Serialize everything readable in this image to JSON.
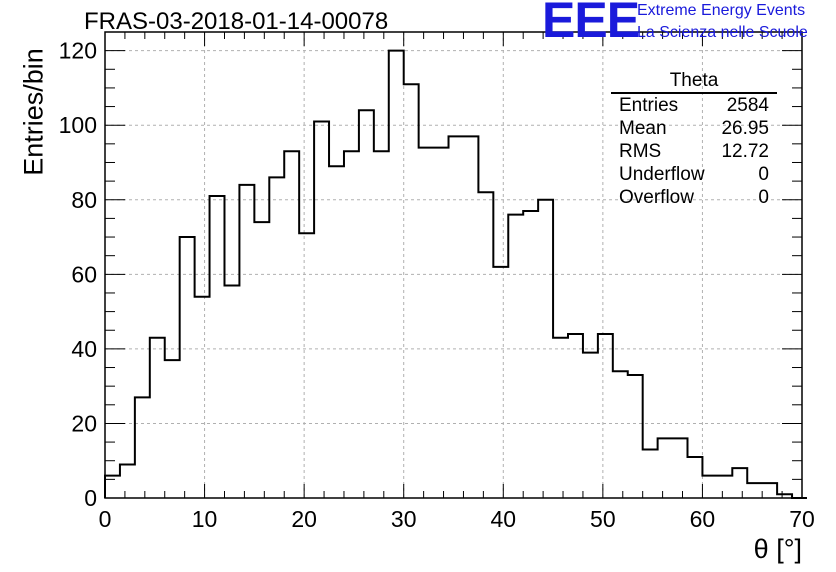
{
  "title": "FRAS-03-2018-01-14-00078",
  "logo": {
    "mark": "EEE",
    "line1": "Extreme Energy Events",
    "line2": "La Scienza nelle Scuole"
  },
  "colors": {
    "logo": "#1a1adb",
    "line": "#000000",
    "grid": "#b0b0b0"
  },
  "stats_box": {
    "title": "Theta",
    "rows": [
      {
        "label": "Entries",
        "value": "2584"
      },
      {
        "label": "Mean",
        "value": "26.95"
      },
      {
        "label": "RMS",
        "value": "12.72"
      },
      {
        "label": "Underflow",
        "value": "0"
      },
      {
        "label": "Overflow",
        "value": "0"
      }
    ]
  },
  "chart_data": {
    "type": "histogram",
    "title": "FRAS-03-2018-01-14-00078",
    "xlabel": "θ [°]",
    "ylabel": "Entries/bin",
    "xlim": [
      0,
      70
    ],
    "ylim": [
      0,
      125
    ],
    "xticks": [
      0,
      10,
      20,
      30,
      40,
      50,
      60,
      70
    ],
    "yticks": [
      0,
      20,
      40,
      60,
      80,
      100,
      120
    ],
    "grid": true,
    "bin_width": 1.5,
    "bin_edges_start": 0,
    "values": [
      6,
      9,
      27,
      43,
      37,
      70,
      54,
      81,
      57,
      84,
      74,
      86,
      93,
      71,
      101,
      89,
      93,
      104,
      93,
      120,
      111,
      94,
      94,
      97,
      97,
      82,
      62,
      76,
      77,
      80,
      43,
      44,
      39,
      44,
      34,
      33,
      13,
      16,
      16,
      11,
      6,
      6,
      8,
      4,
      4,
      1,
      0
    ]
  }
}
